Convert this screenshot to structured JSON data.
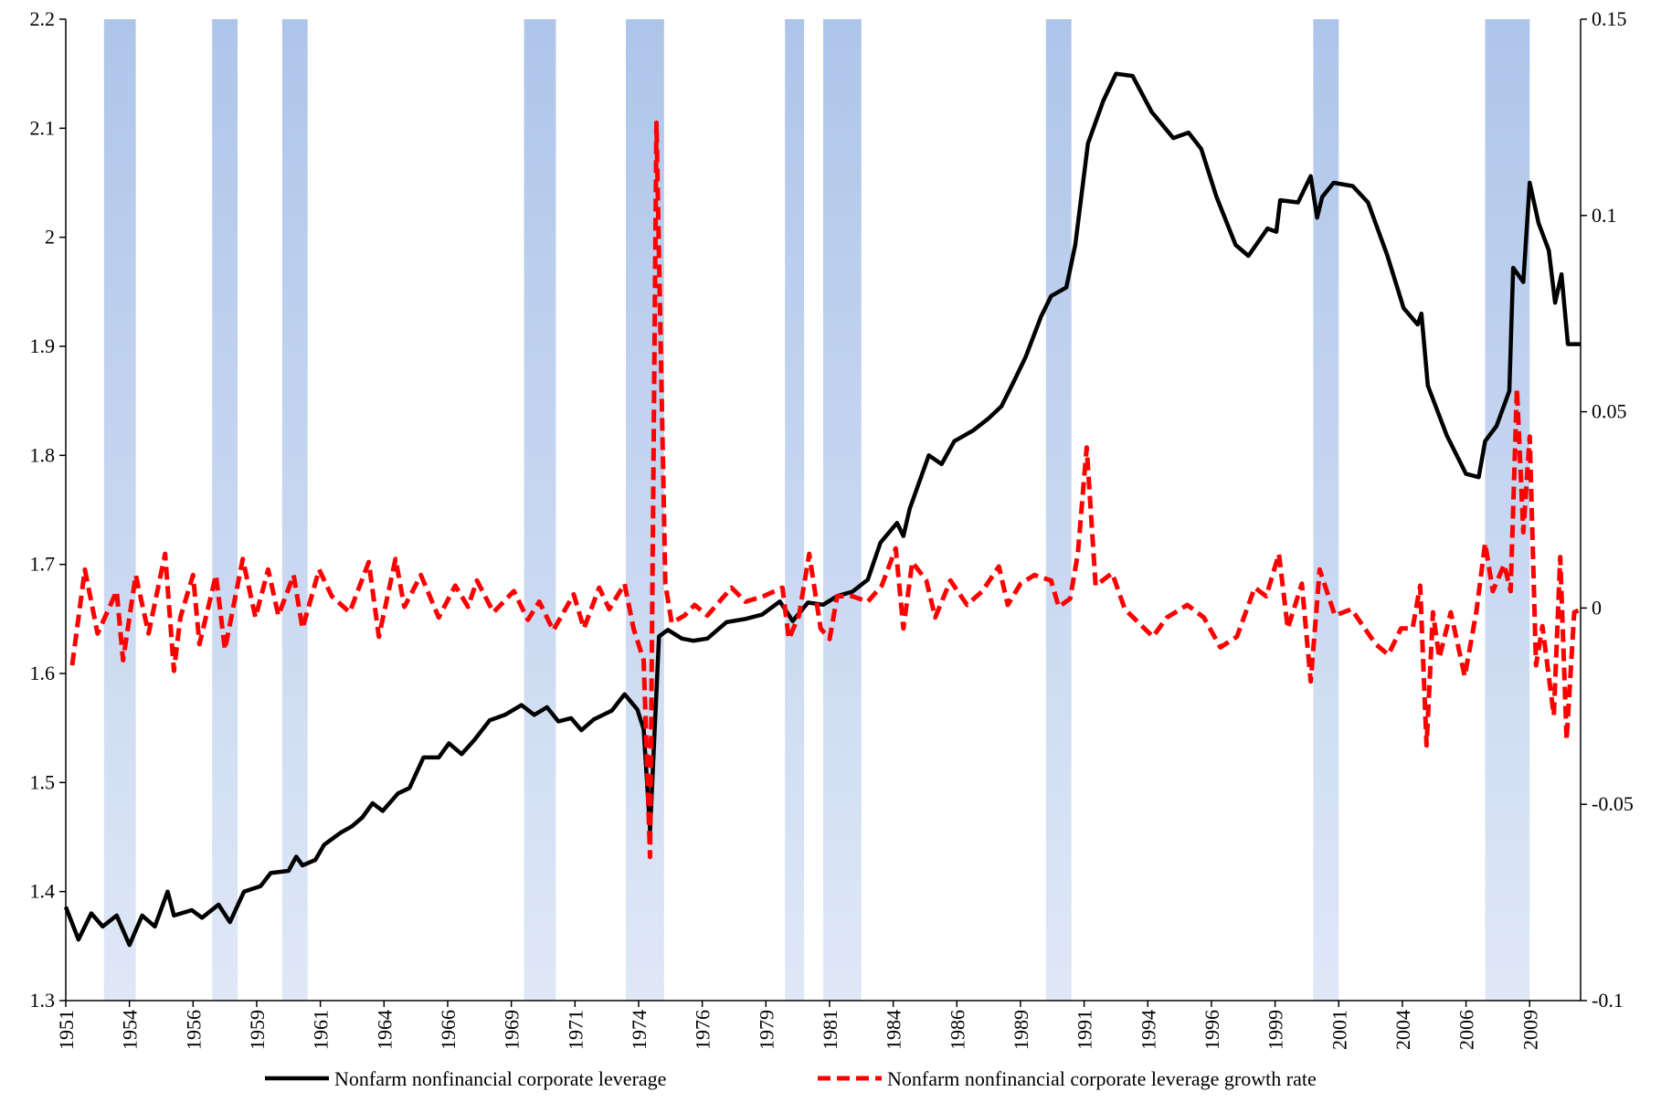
{
  "chart_data": {
    "type": "line",
    "xlim": [
      1951.75,
      2011.25
    ],
    "xticks": [
      {
        "value": 1951.75,
        "label": "1951"
      },
      {
        "value": 1954.25,
        "label": "1954"
      },
      {
        "value": 1956.75,
        "label": "1956"
      },
      {
        "value": 1959.25,
        "label": "1959"
      },
      {
        "value": 1961.75,
        "label": "1961"
      },
      {
        "value": 1964.25,
        "label": "1964"
      },
      {
        "value": 1966.75,
        "label": "1966"
      },
      {
        "value": 1969.25,
        "label": "1969"
      },
      {
        "value": 1971.75,
        "label": "1971"
      },
      {
        "value": 1974.25,
        "label": "1974"
      },
      {
        "value": 1976.75,
        "label": "1976"
      },
      {
        "value": 1979.25,
        "label": "1979"
      },
      {
        "value": 1981.75,
        "label": "1981"
      },
      {
        "value": 1984.25,
        "label": "1984"
      },
      {
        "value": 1986.75,
        "label": "1986"
      },
      {
        "value": 1989.25,
        "label": "1989"
      },
      {
        "value": 1991.75,
        "label": "1991"
      },
      {
        "value": 1994.25,
        "label": "1994"
      },
      {
        "value": 1996.75,
        "label": "1996"
      },
      {
        "value": 1999.25,
        "label": "1999"
      },
      {
        "value": 2001.75,
        "label": "2001"
      },
      {
        "value": 2004.25,
        "label": "2004"
      },
      {
        "value": 2006.75,
        "label": "2006"
      },
      {
        "value": 2009.25,
        "label": "2009"
      }
    ],
    "ylim": [
      1.3,
      2.2
    ],
    "yticks": [
      1.3,
      1.4,
      1.5,
      1.6,
      1.7,
      1.8,
      1.9,
      2,
      2.1,
      2.2
    ],
    "y2lim": [
      -0.1,
      0.15
    ],
    "y2ticks": [
      -0.1,
      -0.05,
      0,
      0.05,
      0.1,
      0.15
    ],
    "shaded_color": "#aec5ea",
    "shaded_periods": [
      [
        1953.25,
        1954.5
      ],
      [
        1957.5,
        1958.5
      ],
      [
        1960.25,
        1961.25
      ],
      [
        1969.75,
        1971
      ],
      [
        1973.75,
        1975.25
      ],
      [
        1980,
        1980.75
      ],
      [
        1981.5,
        1983
      ],
      [
        1990.25,
        1991.25
      ],
      [
        2000.75,
        2001.75
      ],
      [
        2007.5,
        2009.25
      ]
    ],
    "series": [
      {
        "name": "Nonfarm nonfinancial corporate leverage",
        "color": "#000000",
        "dashed": false,
        "axis": "y",
        "x": [
          1951.75,
          1952.25,
          1952.75,
          1953.2,
          1953.75,
          1954.25,
          1954.75,
          1955.25,
          1955.75,
          1956,
          1956.7,
          1957.1,
          1957.75,
          1958.2,
          1958.75,
          1959.4,
          1959.8,
          1960.5,
          1960.8,
          1961.05,
          1961.55,
          1961.9,
          1962.55,
          1963,
          1963.4,
          1963.8,
          1964.2,
          1964.8,
          1965.25,
          1965.8,
          1966.4,
          1966.8,
          1967.3,
          1967.8,
          1968.4,
          1969,
          1969.65,
          1970.15,
          1970.65,
          1971.1,
          1971.6,
          1972,
          1972.5,
          1973.2,
          1973.7,
          1974.2,
          1974.45,
          1974.7,
          1975.05,
          1975.4,
          1975.95,
          1976.4,
          1976.95,
          1977.7,
          1978.45,
          1979.1,
          1979.8,
          1980.3,
          1980.9,
          1981.5,
          1982.05,
          1982.65,
          1983.25,
          1983.75,
          1984.4,
          1984.65,
          1984.9,
          1985.65,
          1986.15,
          1986.65,
          1987.4,
          1988,
          1988.5,
          1988.95,
          1989.45,
          1990.05,
          1990.45,
          1991.05,
          1991.4,
          1991.9,
          1992.5,
          1993,
          1993.65,
          1994.4,
          1995.25,
          1995.85,
          1996.35,
          1996.95,
          1997.7,
          1998.2,
          1998.95,
          1999.3,
          1999.45,
          2000.15,
          2000.65,
          2000.9,
          2001.1,
          2001.55,
          2002.3,
          2002.9,
          2003.65,
          2004.3,
          2004.85,
          2005,
          2005.25,
          2006,
          2006.75,
          2007.25,
          2007.5,
          2007.95,
          2008.45,
          2008.6,
          2009,
          2009.25,
          2009.6,
          2010,
          2010.25,
          2010.5,
          2010.75,
          2011.25
        ],
        "values": [
          1.386,
          1.356,
          1.38,
          1.368,
          1.378,
          1.351,
          1.378,
          1.368,
          1.4,
          1.378,
          1.383,
          1.376,
          1.388,
          1.372,
          1.4,
          1.405,
          1.417,
          1.419,
          1.432,
          1.424,
          1.429,
          1.443,
          1.454,
          1.46,
          1.468,
          1.481,
          1.474,
          1.49,
          1.495,
          1.523,
          1.523,
          1.536,
          1.526,
          1.539,
          1.557,
          1.562,
          1.571,
          1.562,
          1.569,
          1.556,
          1.559,
          1.548,
          1.558,
          1.566,
          1.581,
          1.567,
          1.549,
          1.456,
          1.634,
          1.64,
          1.632,
          1.63,
          1.632,
          1.647,
          1.65,
          1.654,
          1.666,
          1.648,
          1.665,
          1.663,
          1.671,
          1.675,
          1.686,
          1.72,
          1.738,
          1.726,
          1.751,
          1.8,
          1.792,
          1.813,
          1.823,
          1.834,
          1.845,
          1.866,
          1.89,
          1.927,
          1.946,
          1.954,
          1.993,
          2.086,
          2.125,
          2.15,
          2.148,
          2.115,
          2.091,
          2.096,
          2.081,
          2.037,
          1.993,
          1.983,
          2.008,
          2.005,
          2.034,
          2.032,
          2.056,
          2.018,
          2.037,
          2.05,
          2.047,
          2.032,
          1.984,
          1.935,
          1.92,
          1.93,
          1.864,
          1.818,
          1.783,
          1.78,
          1.813,
          1.827,
          1.859,
          1.972,
          1.959,
          2.05,
          2.013,
          1.988,
          1.94,
          1.966,
          1.902,
          1.902
        ]
      },
      {
        "name": "Nonfarm nonfinancial corporate leverage growth rate",
        "color": "#ff0000",
        "dashed": true,
        "axis": "y2",
        "x": [
          1952,
          1952.5,
          1953,
          1953.75,
          1954,
          1954.5,
          1955,
          1955.65,
          1956,
          1956.25,
          1956.75,
          1957,
          1957.65,
          1958,
          1958.7,
          1959.2,
          1959.7,
          1960.1,
          1960.7,
          1961.05,
          1961.7,
          1962.2,
          1962.9,
          1963.65,
          1964.05,
          1964.7,
          1965.05,
          1965.7,
          1966.4,
          1967.05,
          1967.55,
          1967.9,
          1968.55,
          1969.35,
          1969.9,
          1970.35,
          1970.9,
          1971.7,
          1972.1,
          1972.7,
          1973.1,
          1973.7,
          1974.05,
          1974.45,
          1974.7,
          1974.95,
          1975.3,
          1975.55,
          1976.05,
          1976.45,
          1976.95,
          1977.9,
          1978.45,
          1979.15,
          1979.9,
          1980.15,
          1980.55,
          1980.95,
          1981.4,
          1981.75,
          1982.05,
          1982.65,
          1983.25,
          1983.8,
          1984.35,
          1984.65,
          1985,
          1985.55,
          1985.9,
          1986.5,
          1987.15,
          1987.75,
          1988.4,
          1988.75,
          1989.25,
          1989.8,
          1990.45,
          1990.75,
          1991.2,
          1991.5,
          1991.85,
          1992.2,
          1992.85,
          1993.35,
          1994.45,
          1995,
          1995.8,
          1996.45,
          1997.1,
          1997.75,
          1998.45,
          1998.9,
          1999.4,
          1999.75,
          2000.3,
          2000.65,
          2001,
          2001.6,
          2002.25,
          2003.2,
          2003.7,
          2004.2,
          2004.65,
          2004.95,
          2005.2,
          2005.45,
          2005.7,
          2006.15,
          2006.7,
          2007.15,
          2007.5,
          2007.8,
          2008.25,
          2008.5,
          2008.75,
          2009,
          2009.25,
          2009.5,
          2009.75,
          2010.2,
          2010.45,
          2010.7,
          2011,
          2011.2
        ],
        "values": [
          -0.0146,
          0.0098,
          -0.0065,
          0.0043,
          -0.0133,
          0.0084,
          -0.0065,
          0.0138,
          -0.016,
          -0.0024,
          0.0084,
          -0.0092,
          0.0084,
          -0.0106,
          0.0125,
          -0.0024,
          0.0098,
          -0.0019,
          0.0084,
          -0.0052,
          0.0098,
          0.003,
          -0.0011,
          0.0117,
          -0.0073,
          0.0125,
          0.0003,
          0.0084,
          -0.0024,
          0.0057,
          0.0003,
          0.007,
          -0.0011,
          0.0043,
          -0.003,
          0.0016,
          -0.0057,
          0.0035,
          -0.0052,
          0.0052,
          -0.0003,
          0.0062,
          -0.0052,
          -0.0133,
          -0.0634,
          0.1236,
          0.0062,
          -0.0038,
          -0.0019,
          0.0008,
          -0.0019,
          0.0052,
          0.0016,
          0.003,
          0.0052,
          -0.0079,
          -0.0019,
          0.0138,
          -0.0052,
          -0.0079,
          0.003,
          0.003,
          0.0016,
          0.0057,
          0.0152,
          -0.0052,
          0.0117,
          0.007,
          -0.0024,
          0.007,
          0.0008,
          0.0043,
          0.0106,
          0.0008,
          0.0062,
          0.0084,
          0.007,
          0.0003,
          0.0024,
          0.0138,
          0.0409,
          0.0057,
          0.0089,
          -0.0003,
          -0.0073,
          -0.0024,
          0.0008,
          -0.0024,
          -0.01,
          -0.0073,
          0.0052,
          0.003,
          0.0138,
          -0.0052,
          0.0062,
          -0.0187,
          0.0098,
          -0.0019,
          -0.0003,
          -0.0092,
          -0.0119,
          -0.0052,
          -0.0052,
          0.0057,
          -0.035,
          -0.0011,
          -0.0127,
          -0.0011,
          -0.0174,
          -0.0011,
          0.0165,
          0.0043,
          0.0111,
          0.0043,
          0.0559,
          0.0193,
          0.0437,
          -0.0146,
          -0.0046,
          -0.0274,
          0.013,
          -0.0336,
          -0.0011,
          -0.0005
        ]
      }
    ]
  }
}
